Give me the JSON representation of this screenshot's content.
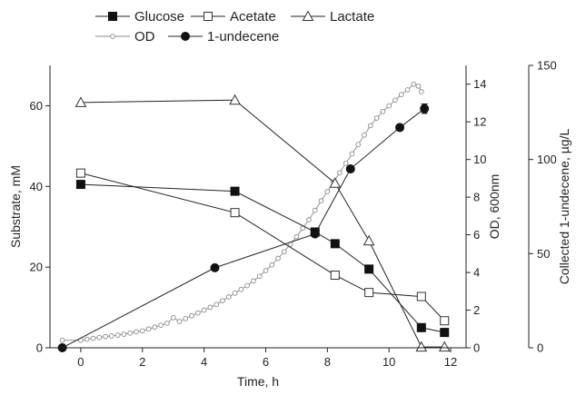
{
  "chart_data": {
    "type": "line",
    "x_axis": {
      "label": "Time, h",
      "range": [
        -1,
        12.5
      ],
      "ticks": [
        0,
        2,
        4,
        6,
        8,
        10,
        12
      ]
    },
    "y_axes": [
      {
        "id": "substrate",
        "label": "Substrate, mM",
        "side": "left",
        "range": [
          0,
          70
        ],
        "ticks": [
          0,
          20,
          40,
          60
        ]
      },
      {
        "id": "od",
        "label": "OD, 600nm",
        "side": "right-inner",
        "range": [
          0,
          15
        ],
        "ticks": [
          0,
          2,
          4,
          6,
          8,
          10,
          12,
          14
        ]
      },
      {
        "id": "undecene",
        "label": "Collected 1-undecene, µg/L",
        "side": "right-outer",
        "range": [
          0,
          150
        ],
        "ticks": [
          0,
          50,
          100,
          150
        ]
      }
    ],
    "legend": {
      "placement": "top-left",
      "entries": [
        "Glucose",
        "Acetate",
        "Lactate",
        "OD",
        "1-undecene"
      ]
    },
    "series": [
      {
        "name": "Glucose",
        "axis": "substrate",
        "marker": "filled-square",
        "color": "#222222",
        "x": [
          0,
          5.0,
          7.6,
          8.25,
          9.35,
          11.05,
          11.8
        ],
        "y": [
          40.5,
          38.8,
          28.7,
          25.8,
          19.5,
          5.0,
          3.8
        ]
      },
      {
        "name": "Acetate",
        "axis": "substrate",
        "marker": "open-square",
        "color": "#222222",
        "x": [
          0,
          5.0,
          8.25,
          9.35,
          11.05,
          11.8
        ],
        "y": [
          43.3,
          33.5,
          18.0,
          13.7,
          12.7,
          6.7
        ]
      },
      {
        "name": "Lactate",
        "axis": "substrate",
        "marker": "open-triangle",
        "color": "#222222",
        "x": [
          0,
          5.0,
          8.25,
          9.35,
          11.05,
          11.8
        ],
        "y": [
          60.8,
          61.4,
          40.8,
          26.5,
          0.2,
          0.2
        ]
      },
      {
        "name": "OD",
        "axis": "od",
        "marker": "small-open-circle",
        "color": "#888888",
        "x": [
          -0.6,
          0,
          0.2,
          0.4,
          0.6,
          0.8,
          1.0,
          1.2,
          1.4,
          1.6,
          1.8,
          2.0,
          2.2,
          2.4,
          2.6,
          2.8,
          3.0,
          3.2,
          3.4,
          3.6,
          3.8,
          4.0,
          4.2,
          4.4,
          4.6,
          4.8,
          5.0,
          5.2,
          5.4,
          5.6,
          5.8,
          6.0,
          6.2,
          6.4,
          6.6,
          6.8,
          7.0,
          7.2,
          7.4,
          7.6,
          7.8,
          8.0,
          8.2,
          8.4,
          8.6,
          8.8,
          9.0,
          9.2,
          9.4,
          9.6,
          9.8,
          10.0,
          10.2,
          10.4,
          10.6,
          10.8,
          10.95,
          11.05
        ],
        "y": [
          0.4,
          0.4,
          0.45,
          0.5,
          0.55,
          0.6,
          0.63,
          0.67,
          0.72,
          0.78,
          0.85,
          0.9,
          1.0,
          1.1,
          1.2,
          1.3,
          1.6,
          1.4,
          1.55,
          1.7,
          1.85,
          2.0,
          2.15,
          2.3,
          2.5,
          2.7,
          2.9,
          3.1,
          3.3,
          3.55,
          3.8,
          4.1,
          4.4,
          4.75,
          5.1,
          5.5,
          5.9,
          6.35,
          6.8,
          7.3,
          7.8,
          8.3,
          8.8,
          9.3,
          9.8,
          10.3,
          10.8,
          11.3,
          11.8,
          12.2,
          12.55,
          12.85,
          13.15,
          13.45,
          13.7,
          14.0,
          13.9,
          13.6
        ]
      },
      {
        "name": "1-undecene",
        "axis": "undecene",
        "marker": "filled-circle",
        "color": "#222222",
        "x": [
          -0.6,
          4.35,
          7.6,
          8.75,
          10.35,
          11.15
        ],
        "y": [
          0,
          42.5,
          60.5,
          95.0,
          117.0,
          127.0
        ],
        "error": [
          0,
          0,
          0,
          0,
          0,
          2.5
        ]
      }
    ]
  }
}
